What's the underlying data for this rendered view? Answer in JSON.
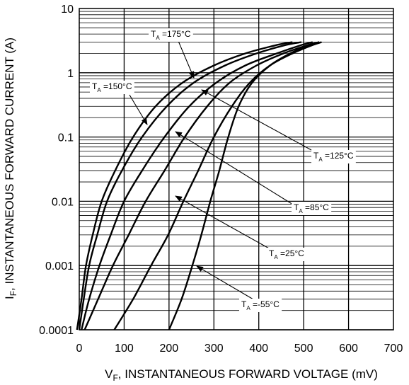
{
  "chart_data": {
    "type": "line",
    "xlabel_main": "V",
    "xlabel_sub": "F",
    "xlabel_rest": ", INSTANTANEOUS FORWARD VOLTAGE (mV)",
    "ylabel_main": "I",
    "ylabel_sub": "F",
    "ylabel_rest": ", INSTANTANEOUS FORWARD CURRENT (A)",
    "xlim": [
      0,
      700
    ],
    "ylim": [
      0.0001,
      10
    ],
    "y_scale": "log",
    "grid": true,
    "x_ticks": [
      0,
      100,
      200,
      300,
      400,
      500,
      600,
      700
    ],
    "x_tick_labels": [
      "0",
      "100",
      "200",
      "300",
      "400",
      "500",
      "600",
      "700"
    ],
    "y_ticks": [
      0.0001,
      0.001,
      0.01,
      0.1,
      1,
      10
    ],
    "y_tick_labels": [
      "0.0001",
      "0.001",
      "0.01",
      "0.1",
      "1",
      "10"
    ],
    "series": [
      {
        "name": "TA = 175°C",
        "label_main": "T",
        "label_sub": "A",
        "label_rest": " =175°C",
        "x": [
          -5,
          5,
          15,
          30,
          50,
          80,
          120,
          170,
          230,
          300,
          370,
          440,
          475
        ],
        "y": [
          0.0001,
          0.0003,
          0.001,
          0.003,
          0.01,
          0.03,
          0.1,
          0.3,
          0.7,
          1.3,
          2.0,
          2.7,
          3.0
        ]
      },
      {
        "name": "TA = 150°C",
        "label_main": "T",
        "label_sub": "A",
        "label_rest": " =150°C",
        "x": [
          0,
          10,
          22,
          40,
          62,
          95,
          140,
          195,
          255,
          325,
          395,
          460,
          495
        ],
        "y": [
          0.0001,
          0.0003,
          0.001,
          0.003,
          0.01,
          0.03,
          0.1,
          0.3,
          0.7,
          1.3,
          2.0,
          2.7,
          3.0
        ]
      },
      {
        "name": "TA = 125°C",
        "label_main": "T",
        "label_sub": "A",
        "label_rest": " =125°C",
        "x": [
          5,
          22,
          45,
          70,
          100,
          140,
          190,
          245,
          305,
          370,
          440,
          495,
          520
        ],
        "y": [
          0.0001,
          0.0003,
          0.001,
          0.003,
          0.01,
          0.03,
          0.1,
          0.3,
          0.7,
          1.3,
          2.0,
          2.7,
          3.0
        ]
      },
      {
        "name": "TA = 85°C",
        "label_main": "T",
        "label_sub": "A",
        "label_rest": " =85°C",
        "x": [
          12,
          42,
          75,
          110,
          148,
          190,
          235,
          285,
          335,
          395,
          455,
          510,
          535
        ],
        "y": [
          0.0001,
          0.0003,
          0.001,
          0.003,
          0.01,
          0.03,
          0.1,
          0.3,
          0.7,
          1.3,
          2.0,
          2.7,
          3.0
        ]
      },
      {
        "name": "TA = 25°C",
        "label_main": "T",
        "label_sub": "A",
        "label_rest": " =25°C",
        "x": [
          78,
          120,
          160,
          198,
          232,
          265,
          300,
          340,
          380,
          425,
          475,
          520,
          540
        ],
        "y": [
          0.0001,
          0.0003,
          0.001,
          0.003,
          0.01,
          0.03,
          0.1,
          0.3,
          0.7,
          1.3,
          2.0,
          2.7,
          3.0
        ]
      },
      {
        "name": "TA = -55°C",
        "label_main": "T",
        "label_sub": "A",
        "label_rest": " =-55°C",
        "x": [
          200,
          228,
          252,
          272,
          292,
          312,
          332,
          355,
          385,
          425,
          470,
          512,
          535
        ],
        "y": [
          0.0001,
          0.0003,
          0.001,
          0.003,
          0.01,
          0.03,
          0.1,
          0.3,
          0.7,
          1.3,
          2.0,
          2.7,
          3.0
        ]
      }
    ]
  }
}
